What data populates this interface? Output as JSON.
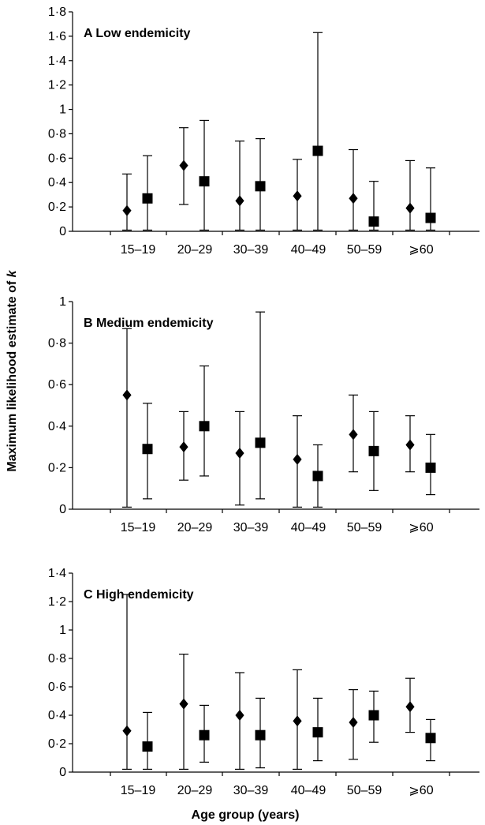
{
  "figure": {
    "ylabel": "Maximum likelihood estimate of k",
    "ylabel_prefix": "Maximum likelihood estimate of ",
    "ylabel_var": "k",
    "xlabel": "Age group (years)"
  },
  "chart_data": [
    {
      "type": "scatter",
      "title": "A  Low endemicity",
      "categories": [
        "15–19",
        "20–29",
        "30–39",
        "40–49",
        "50–59",
        "⩾60"
      ],
      "ylim": [
        0,
        1.8
      ],
      "yticks": [
        0,
        0.2,
        0.4,
        0.6,
        0.8,
        1,
        1.2,
        1.4,
        1.6,
        1.8
      ],
      "ytick_labels": [
        "0",
        "0·2",
        "0·4",
        "0·6",
        "0·8",
        "1",
        "1·2",
        "1·4",
        "1·6",
        "1·8"
      ],
      "grid": false,
      "series": [
        {
          "marker": "diamond",
          "values": [
            0.17,
            0.54,
            0.25,
            0.29,
            0.27,
            0.19
          ],
          "lower": [
            0.01,
            0.22,
            0.01,
            0.01,
            0.01,
            0.01
          ],
          "upper": [
            0.47,
            0.85,
            0.74,
            0.59,
            0.67,
            0.58
          ]
        },
        {
          "marker": "square",
          "values": [
            0.27,
            0.41,
            0.37,
            0.66,
            0.08,
            0.11
          ],
          "lower": [
            0.01,
            0.01,
            0.01,
            0.01,
            0.01,
            0.01
          ],
          "upper": [
            0.62,
            0.91,
            0.76,
            1.63,
            0.41,
            0.52
          ]
        }
      ]
    },
    {
      "type": "scatter",
      "title": "B  Medium endemicity",
      "categories": [
        "15–19",
        "20–29",
        "30–39",
        "40–49",
        "50–59",
        "⩾60"
      ],
      "ylim": [
        0,
        1
      ],
      "yticks": [
        0,
        0.2,
        0.4,
        0.6,
        0.8,
        1
      ],
      "ytick_labels": [
        "0",
        "0·2",
        "0·4",
        "0·6",
        "0·8",
        "1"
      ],
      "grid": false,
      "series": [
        {
          "marker": "diamond",
          "values": [
            0.55,
            0.3,
            0.27,
            0.24,
            0.36,
            0.31
          ],
          "lower": [
            0.01,
            0.14,
            0.02,
            0.01,
            0.18,
            0.18
          ],
          "upper": [
            0.87,
            0.47,
            0.47,
            0.45,
            0.55,
            0.45
          ]
        },
        {
          "marker": "square",
          "values": [
            0.29,
            0.4,
            0.32,
            0.16,
            0.28,
            0.2
          ],
          "lower": [
            0.05,
            0.16,
            0.05,
            0.01,
            0.09,
            0.07
          ],
          "upper": [
            0.51,
            0.69,
            0.95,
            0.31,
            0.47,
            0.36
          ]
        }
      ]
    },
    {
      "type": "scatter",
      "title": "C  High endemicity",
      "categories": [
        "15–19",
        "20–29",
        "30–39",
        "40–49",
        "50–59",
        "⩾60"
      ],
      "ylim": [
        0,
        1.4
      ],
      "yticks": [
        0,
        0.2,
        0.4,
        0.6,
        0.8,
        1,
        1.2,
        1.4
      ],
      "ytick_labels": [
        "0",
        "0·2",
        "0·4",
        "0·6",
        "0·8",
        "1",
        "1·2",
        "1·4"
      ],
      "grid": false,
      "series": [
        {
          "marker": "diamond",
          "values": [
            0.29,
            0.48,
            0.4,
            0.36,
            0.35,
            0.46
          ],
          "lower": [
            0.02,
            0.02,
            0.02,
            0.02,
            0.09,
            0.28
          ],
          "upper": [
            1.25,
            0.83,
            0.7,
            0.72,
            0.58,
            0.66
          ]
        },
        {
          "marker": "square",
          "values": [
            0.18,
            0.26,
            0.26,
            0.28,
            0.4,
            0.24
          ],
          "lower": [
            0.02,
            0.07,
            0.03,
            0.08,
            0.21,
            0.08
          ],
          "upper": [
            0.42,
            0.47,
            0.52,
            0.52,
            0.57,
            0.37
          ]
        }
      ]
    }
  ]
}
